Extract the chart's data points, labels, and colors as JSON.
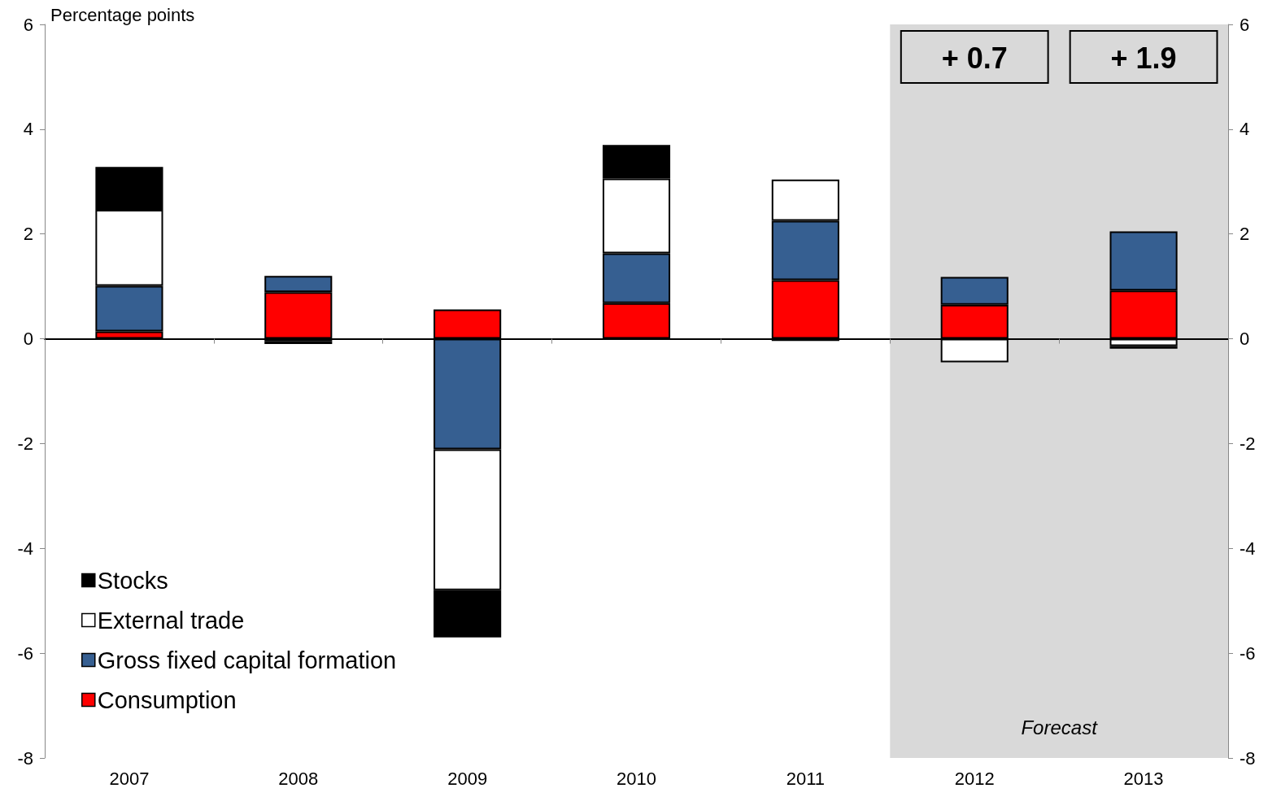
{
  "chart_data": {
    "type": "bar",
    "stacked": true,
    "ylabel": "Percentage points",
    "categories": [
      "2007",
      "2008",
      "2009",
      "2010",
      "2011",
      "2012",
      "2013"
    ],
    "series": [
      {
        "name": "Consumption",
        "color": "#ff0000",
        "values": [
          0.14,
          0.89,
          0.56,
          0.68,
          1.12,
          0.65,
          0.92
        ]
      },
      {
        "name": "Gross fixed capital formation",
        "color": "#365f91",
        "values": [
          0.87,
          0.31,
          -2.11,
          0.95,
          1.13,
          0.53,
          1.13
        ]
      },
      {
        "name": "External trade",
        "color": "#ffffff",
        "values": [
          1.45,
          -0.05,
          -2.69,
          1.43,
          0.79,
          -0.45,
          -0.14
        ]
      },
      {
        "name": "Stocks",
        "color": "#000000",
        "values": [
          0.82,
          -0.05,
          -0.9,
          0.64,
          -0.04,
          null,
          -0.05
        ]
      }
    ],
    "ylim": [
      -8,
      6
    ],
    "yticks": [
      -8,
      -6,
      -4,
      -2,
      0,
      2,
      4,
      6
    ],
    "y2lim": [
      -8,
      6
    ],
    "y2ticks": [
      -8,
      -6,
      -4,
      -2,
      0,
      2,
      4,
      6
    ],
    "bands": [
      {
        "axis": "x",
        "from": "2012",
        "to": "2013",
        "label": "Forecast",
        "color": "#d9d9d9"
      }
    ],
    "annotations": [
      "+ 0.7",
      "+ 1.9"
    ],
    "legend": "bottom left"
  }
}
